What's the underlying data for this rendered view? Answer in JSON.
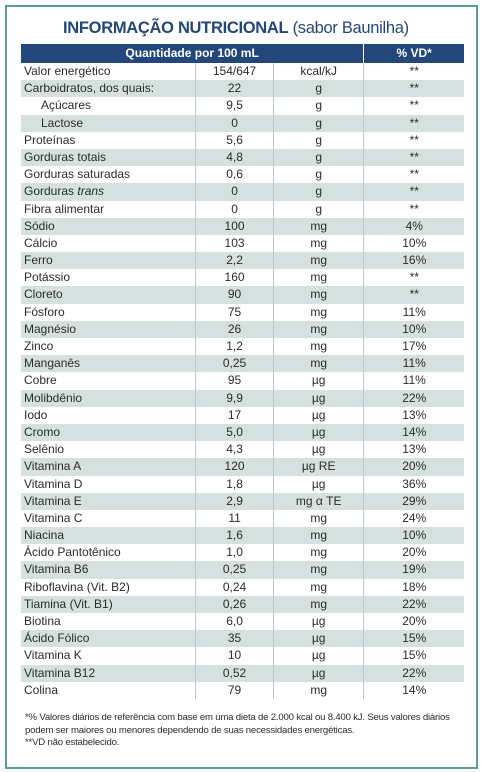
{
  "header": {
    "title": "INFORMAÇÃO NUTRICIONAL",
    "subtitle": "(sabor Baunilha)"
  },
  "table": {
    "columns": [
      "Quantidade por 100 mL",
      "% VD*"
    ],
    "rows": [
      {
        "name": "Valor energético",
        "amount": "154/647",
        "unit": "kcal/kJ",
        "vd": "**"
      },
      {
        "name": "Carboidratos, dos quais:",
        "amount": "22",
        "unit": "g",
        "vd": "**"
      },
      {
        "name": "Açúcares",
        "amount": "9,5",
        "unit": "g",
        "vd": "**",
        "indent": true
      },
      {
        "name": "Lactose",
        "amount": "0",
        "unit": "g",
        "vd": "**",
        "indent": true
      },
      {
        "name": "Proteínas",
        "amount": "5,6",
        "unit": "g",
        "vd": "**"
      },
      {
        "name": "Gorduras totais",
        "amount": "4,8",
        "unit": "g",
        "vd": "**"
      },
      {
        "name": "Gorduras saturadas",
        "amount": "0,6",
        "unit": "g",
        "vd": "**"
      },
      {
        "name": "Gorduras",
        "name_italic": "trans",
        "amount": "0",
        "unit": "g",
        "vd": "**"
      },
      {
        "name": "Fibra alimentar",
        "amount": "0",
        "unit": "g",
        "vd": "**"
      },
      {
        "name": "Sódio",
        "amount": "100",
        "unit": "mg",
        "vd": "4%"
      },
      {
        "name": "Cálcio",
        "amount": "103",
        "unit": "mg",
        "vd": "10%"
      },
      {
        "name": "Ferro",
        "amount": "2,2",
        "unit": "mg",
        "vd": "16%"
      },
      {
        "name": "Potássio",
        "amount": "160",
        "unit": "mg",
        "vd": "**"
      },
      {
        "name": "Cloreto",
        "amount": "90",
        "unit": "mg",
        "vd": "**"
      },
      {
        "name": "Fósforo",
        "amount": "75",
        "unit": "mg",
        "vd": "11%"
      },
      {
        "name": "Magnésio",
        "amount": "26",
        "unit": "mg",
        "vd": "10%"
      },
      {
        "name": "Zinco",
        "amount": "1,2",
        "unit": "mg",
        "vd": "17%"
      },
      {
        "name": "Manganês",
        "amount": "0,25",
        "unit": "mg",
        "vd": "11%"
      },
      {
        "name": "Cobre",
        "amount": "95",
        "unit": "µg",
        "vd": "11%"
      },
      {
        "name": "Molibdênio",
        "amount": "9,9",
        "unit": "µg",
        "vd": "22%"
      },
      {
        "name": "Iodo",
        "amount": "17",
        "unit": "µg",
        "vd": "13%"
      },
      {
        "name": "Cromo",
        "amount": "5,0",
        "unit": "µg",
        "vd": "14%"
      },
      {
        "name": "Selênio",
        "amount": "4,3",
        "unit": "µg",
        "vd": "13%"
      },
      {
        "name": "Vitamina A",
        "amount": "120",
        "unit": "µg RE",
        "vd": "20%"
      },
      {
        "name": "Vitamina D",
        "amount": "1,8",
        "unit": "µg",
        "vd": "36%"
      },
      {
        "name": "Vitamina E",
        "amount": "2,9",
        "unit": "mg α TE",
        "vd": "29%"
      },
      {
        "name": "Vitamina C",
        "amount": "11",
        "unit": "mg",
        "vd": "24%"
      },
      {
        "name": "Niacina",
        "amount": "1,6",
        "unit": "mg",
        "vd": "10%"
      },
      {
        "name": "Ácido Pantotênico",
        "amount": "1,0",
        "unit": "mg",
        "vd": "20%"
      },
      {
        "name": "Vitamina B6",
        "amount": "0,25",
        "unit": "mg",
        "vd": "19%"
      },
      {
        "name": "Riboflavina (Vit. B2)",
        "amount": "0,24",
        "unit": "mg",
        "vd": "18%"
      },
      {
        "name": "Tiamina (Vit. B1)",
        "amount": "0,26",
        "unit": "mg",
        "vd": "22%"
      },
      {
        "name": "Biotina",
        "amount": "6,0",
        "unit": "µg",
        "vd": "20%"
      },
      {
        "name": "Ácido Fólico",
        "amount": "35",
        "unit": "µg",
        "vd": "15%"
      },
      {
        "name": "Vitamina K",
        "amount": "10",
        "unit": "µg",
        "vd": "15%"
      },
      {
        "name": "Vitamina B12",
        "amount": "0,52",
        "unit": "µg",
        "vd": "22%"
      },
      {
        "name": "Colina",
        "amount": "79",
        "unit": "mg",
        "vd": "14%"
      }
    ]
  },
  "footnotes": [
    "*% Valores diários de referência com base em uma dieta de 2.000 kcal ou 8.400 kJ. Seus valores diários podem ser maiores ou menores dependendo de suas necessidades energéticas.",
    "**VD não estabelecido."
  ]
}
